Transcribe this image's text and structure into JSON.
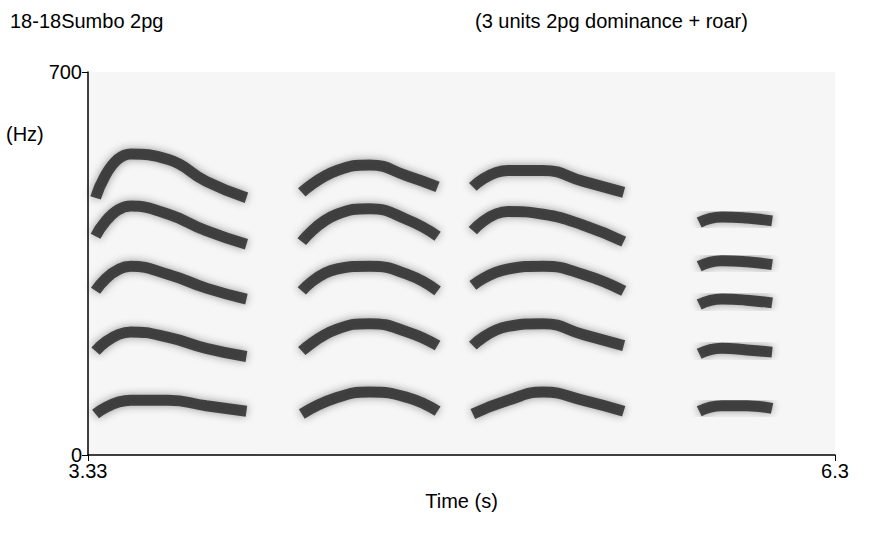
{
  "chart_data": {
    "type": "line",
    "title": "18-18Sumbo 2pg",
    "subtitle": "(3 units 2pg dominance + roar)",
    "x_label": "Time (s)",
    "y_label": "(Hz)",
    "xlim": [
      3.33,
      6.3
    ],
    "xticks": [
      3.33,
      6.3
    ],
    "ylim": [
      0,
      700
    ],
    "yticks": [
      0,
      700
    ],
    "grid": false,
    "color": "#2b2b2b",
    "series": [
      {
        "x": [
          3.36,
          3.5,
          3.65,
          3.8,
          3.96
        ],
        "values": [
          75,
          100,
          100,
          90,
          80
        ]
      },
      {
        "x": [
          3.36,
          3.5,
          3.65,
          3.8,
          3.96
        ],
        "values": [
          190,
          225,
          215,
          195,
          180
        ]
      },
      {
        "x": [
          3.36,
          3.5,
          3.65,
          3.8,
          3.96
        ],
        "values": [
          300,
          345,
          330,
          305,
          285
        ]
      },
      {
        "x": [
          3.36,
          3.5,
          3.65,
          3.8,
          3.96
        ],
        "values": [
          400,
          455,
          440,
          410,
          385
        ]
      },
      {
        "x": [
          3.36,
          3.5,
          3.65,
          3.8,
          3.96
        ],
        "values": [
          470,
          550,
          540,
          500,
          470
        ]
      },
      {
        "x": [
          4.18,
          4.32,
          4.45,
          4.6,
          4.72
        ],
        "values": [
          75,
          105,
          115,
          105,
          80
        ]
      },
      {
        "x": [
          4.18,
          4.32,
          4.45,
          4.6,
          4.72
        ],
        "values": [
          190,
          230,
          240,
          225,
          200
        ]
      },
      {
        "x": [
          4.18,
          4.32,
          4.45,
          4.6,
          4.72
        ],
        "values": [
          300,
          340,
          345,
          330,
          300
        ]
      },
      {
        "x": [
          4.18,
          4.32,
          4.45,
          4.6,
          4.72
        ],
        "values": [
          390,
          440,
          450,
          430,
          400
        ]
      },
      {
        "x": [
          4.18,
          4.32,
          4.45,
          4.6,
          4.72
        ],
        "values": [
          480,
          520,
          530,
          510,
          490
        ]
      },
      {
        "x": [
          4.86,
          5.0,
          5.14,
          5.3,
          5.46
        ],
        "values": [
          75,
          100,
          115,
          100,
          80
        ]
      },
      {
        "x": [
          4.86,
          5.0,
          5.14,
          5.3,
          5.46
        ],
        "values": [
          200,
          235,
          240,
          220,
          200
        ]
      },
      {
        "x": [
          4.86,
          5.0,
          5.14,
          5.3,
          5.46
        ],
        "values": [
          310,
          340,
          345,
          330,
          300
        ]
      },
      {
        "x": [
          4.86,
          5.0,
          5.14,
          5.3,
          5.46
        ],
        "values": [
          410,
          445,
          440,
          420,
          390
        ]
      },
      {
        "x": [
          4.86,
          5.0,
          5.14,
          5.3,
          5.46
        ],
        "values": [
          490,
          520,
          520,
          500,
          480
        ]
      },
      {
        "x": [
          5.76,
          5.85,
          5.95,
          6.05
        ],
        "values": [
          80,
          90,
          90,
          85
        ]
      },
      {
        "x": [
          5.76,
          5.85,
          5.95,
          6.05
        ],
        "values": [
          185,
          195,
          192,
          188
        ]
      },
      {
        "x": [
          5.76,
          5.85,
          5.95,
          6.05
        ],
        "values": [
          275,
          285,
          283,
          278
        ]
      },
      {
        "x": [
          5.76,
          5.85,
          5.95,
          6.05
        ],
        "values": [
          345,
          355,
          353,
          348
        ]
      },
      {
        "x": [
          5.76,
          5.85,
          5.95,
          6.05
        ],
        "values": [
          425,
          435,
          433,
          428
        ]
      }
    ]
  }
}
